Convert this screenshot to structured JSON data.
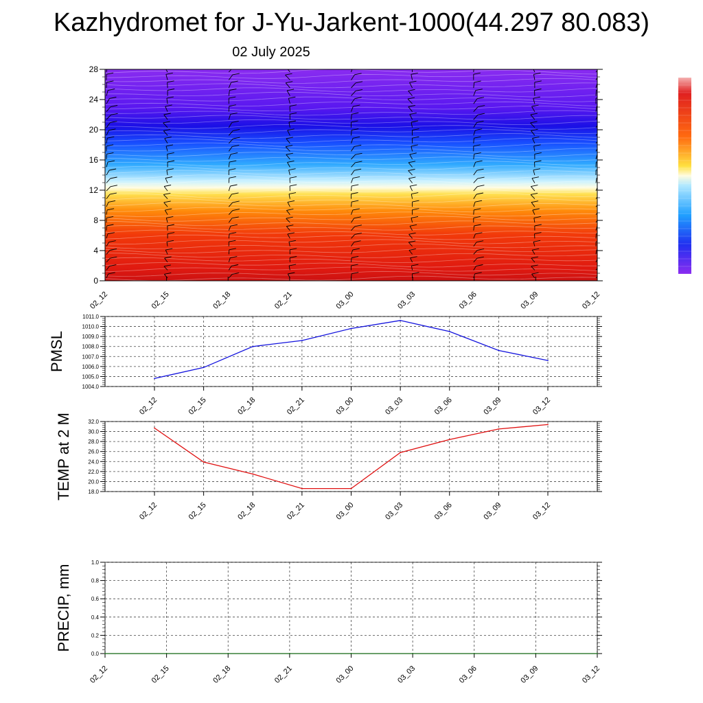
{
  "header": {
    "title": "Kazhydromet for J-Yu-Jarkent-1000(44.297 80.083)",
    "date": "02 July 2025"
  },
  "colors": {
    "pmsl_line": "#1010dd",
    "temp_line": "#e01010",
    "precip_line": "#116611",
    "grid": "#444444"
  },
  "chart_data": [
    {
      "type": "heatmap",
      "ylim": [
        0,
        28
      ],
      "yticks": [
        "0",
        "4",
        "8",
        "12",
        "16",
        "20",
        "24",
        "28"
      ],
      "x": [
        "02_12",
        "02_15",
        "02_18",
        "02_21",
        "03_00",
        "03_03",
        "03_06",
        "03_09",
        "03_12"
      ],
      "legend": "right",
      "wind_barbs": true
    },
    {
      "type": "line",
      "ylabel": "PMSL",
      "ylim": [
        1004.0,
        1011.0
      ],
      "yticks": [
        "1004.0",
        "1005.0",
        "1006.0",
        "1007.0",
        "1008.0",
        "1009.0",
        "1010.0",
        "1011.0"
      ],
      "grid": true,
      "x": [
        "02_12",
        "02_15",
        "02_18",
        "02_21",
        "03_00",
        "03_03",
        "03_06",
        "03_09",
        "03_12"
      ],
      "series": [
        {
          "values": [
            1004.8,
            1005.9,
            1008.0,
            1008.6,
            1009.8,
            1010.6,
            1009.5,
            1007.6,
            1006.6
          ]
        }
      ]
    },
    {
      "type": "line",
      "ylabel": "TEMP at 2 M",
      "ylim": [
        18.0,
        32.0
      ],
      "yticks": [
        "18.0",
        "20.0",
        "22.0",
        "24.0",
        "26.0",
        "28.0",
        "30.0",
        "32.0"
      ],
      "grid": true,
      "x": [
        "02_12",
        "02_15",
        "02_18",
        "02_21",
        "03_00",
        "03_03",
        "03_06",
        "03_09",
        "03_12"
      ],
      "series": [
        {
          "values": [
            30.7,
            23.9,
            21.5,
            18.6,
            18.6,
            25.8,
            28.4,
            30.5,
            31.4
          ]
        }
      ]
    },
    {
      "type": "line",
      "ylabel": "PRECIP, mm",
      "ylim": [
        0.0,
        1.0
      ],
      "yticks": [
        "0.0",
        "0.2",
        "0.4",
        "0.6",
        "0.8",
        "1.0"
      ],
      "grid": true,
      "x": [
        "02_12",
        "02_15",
        "02_18",
        "02_21",
        "03_00",
        "03_03",
        "03_06",
        "03_09",
        "03_12"
      ],
      "series": [
        {
          "values": [
            0,
            0,
            0,
            0,
            0,
            0,
            0,
            0,
            0
          ]
        }
      ]
    }
  ]
}
